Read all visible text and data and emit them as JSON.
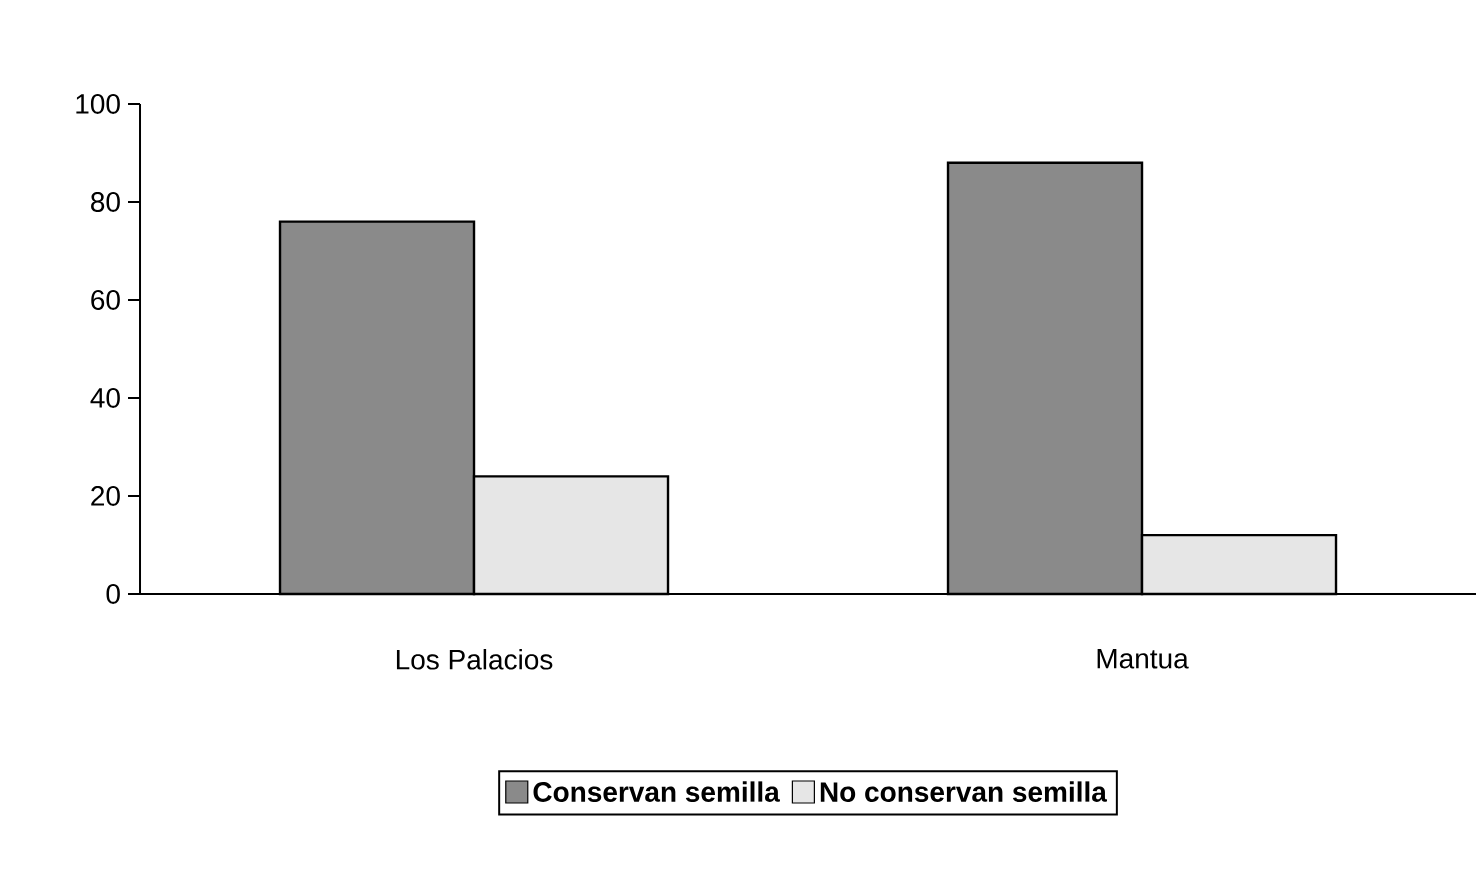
{
  "chart_data": {
    "type": "bar",
    "categories": [
      "Los Palacios",
      "Mantua"
    ],
    "series": [
      {
        "name": "Conservan semilla",
        "color": "#8a8a8a",
        "values": [
          76,
          88
        ]
      },
      {
        "name": "No conservan semilla",
        "color": "#e6e6e6",
        "values": [
          24,
          12
        ]
      }
    ],
    "ylim": [
      0,
      100
    ],
    "yticks": [
      0,
      20,
      40,
      60,
      80,
      100
    ],
    "grid": false,
    "legend": "bottom"
  }
}
